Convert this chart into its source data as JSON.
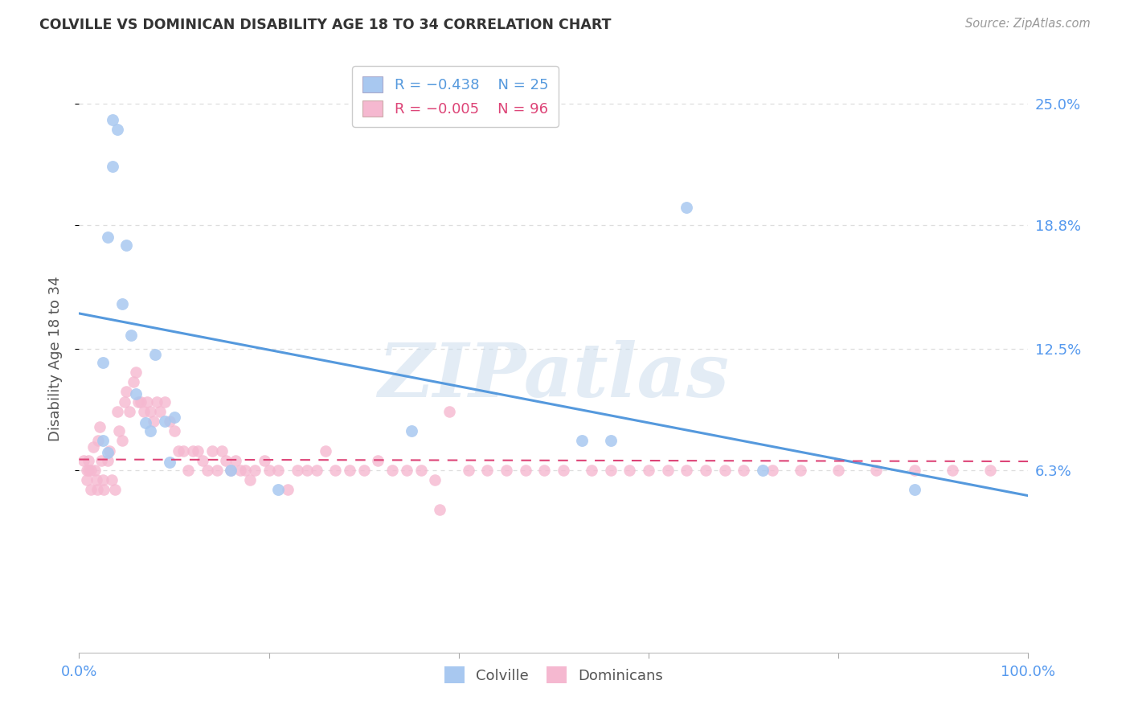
{
  "title": "COLVILLE VS DOMINICAN DISABILITY AGE 18 TO 34 CORRELATION CHART",
  "source": "Source: ZipAtlas.com",
  "ylabel": "Disability Age 18 to 34",
  "xlim": [
    0.0,
    1.0
  ],
  "ylim": [
    -0.03,
    0.27
  ],
  "ytick_vals": [
    0.063,
    0.125,
    0.188,
    0.25
  ],
  "ytick_labels": [
    "6.3%",
    "12.5%",
    "18.8%",
    "25.0%"
  ],
  "xtick_vals": [
    0.0,
    0.2,
    0.4,
    0.6,
    0.8,
    1.0
  ],
  "xtick_labels": [
    "0.0%",
    "",
    "",
    "",
    "",
    "100.0%"
  ],
  "colville_color": "#a8c8f0",
  "dominican_color": "#f5b8d0",
  "regression_blue_color": "#5599dd",
  "regression_pink_color": "#dd4477",
  "legend_r_blue": "R = −0.438",
  "legend_n_blue": "N = 25",
  "legend_r_pink": "R = −0.005",
  "legend_n_pink": "N = 96",
  "colville_x": [
    0.025,
    0.03,
    0.025,
    0.035,
    0.04,
    0.035,
    0.03,
    0.05,
    0.045,
    0.055,
    0.06,
    0.07,
    0.075,
    0.08,
    0.09,
    0.1,
    0.095,
    0.16,
    0.21,
    0.35,
    0.53,
    0.56,
    0.64,
    0.72,
    0.88
  ],
  "colville_y": [
    0.078,
    0.072,
    0.118,
    0.218,
    0.237,
    0.242,
    0.182,
    0.178,
    0.148,
    0.132,
    0.102,
    0.087,
    0.083,
    0.122,
    0.088,
    0.09,
    0.067,
    0.063,
    0.053,
    0.083,
    0.078,
    0.078,
    0.197,
    0.063,
    0.053
  ],
  "dominican_x": [
    0.005,
    0.008,
    0.008,
    0.01,
    0.01,
    0.012,
    0.012,
    0.015,
    0.017,
    0.018,
    0.019,
    0.02,
    0.022,
    0.023,
    0.025,
    0.026,
    0.03,
    0.032,
    0.034,
    0.038,
    0.04,
    0.042,
    0.045,
    0.048,
    0.05,
    0.053,
    0.057,
    0.06,
    0.062,
    0.065,
    0.068,
    0.072,
    0.075,
    0.078,
    0.082,
    0.085,
    0.09,
    0.095,
    0.1,
    0.105,
    0.11,
    0.115,
    0.12,
    0.125,
    0.13,
    0.135,
    0.14,
    0.145,
    0.15,
    0.155,
    0.16,
    0.165,
    0.17,
    0.175,
    0.18,
    0.185,
    0.195,
    0.2,
    0.21,
    0.22,
    0.23,
    0.24,
    0.25,
    0.26,
    0.27,
    0.285,
    0.3,
    0.315,
    0.33,
    0.345,
    0.36,
    0.375,
    0.39,
    0.41,
    0.43,
    0.45,
    0.47,
    0.49,
    0.51,
    0.54,
    0.56,
    0.58,
    0.6,
    0.62,
    0.64,
    0.66,
    0.68,
    0.7,
    0.73,
    0.76,
    0.8,
    0.84,
    0.88,
    0.92,
    0.96,
    0.38
  ],
  "dominican_y": [
    0.068,
    0.063,
    0.058,
    0.063,
    0.068,
    0.063,
    0.053,
    0.075,
    0.063,
    0.058,
    0.053,
    0.078,
    0.085,
    0.068,
    0.058,
    0.053,
    0.068,
    0.073,
    0.058,
    0.053,
    0.093,
    0.083,
    0.078,
    0.098,
    0.103,
    0.093,
    0.108,
    0.113,
    0.098,
    0.098,
    0.093,
    0.098,
    0.093,
    0.088,
    0.098,
    0.093,
    0.098,
    0.088,
    0.083,
    0.073,
    0.073,
    0.063,
    0.073,
    0.073,
    0.068,
    0.063,
    0.073,
    0.063,
    0.073,
    0.068,
    0.063,
    0.068,
    0.063,
    0.063,
    0.058,
    0.063,
    0.068,
    0.063,
    0.063,
    0.053,
    0.063,
    0.063,
    0.063,
    0.073,
    0.063,
    0.063,
    0.063,
    0.068,
    0.063,
    0.063,
    0.063,
    0.058,
    0.093,
    0.063,
    0.063,
    0.063,
    0.063,
    0.063,
    0.063,
    0.063,
    0.063,
    0.063,
    0.063,
    0.063,
    0.063,
    0.063,
    0.063,
    0.063,
    0.063,
    0.063,
    0.063,
    0.063,
    0.063,
    0.063,
    0.063,
    0.043
  ],
  "blue_line": {
    "x0": 0.0,
    "x1": 1.0,
    "y0": 0.143,
    "y1": 0.05
  },
  "pink_line": {
    "x0": 0.0,
    "x1": 1.0,
    "y0": 0.0685,
    "y1": 0.0675
  },
  "watermark_text": "ZIPatlas",
  "background_color": "#ffffff",
  "grid_color": "#dddddd",
  "title_color": "#333333",
  "axis_tick_color": "#5599ee",
  "ylabel_color": "#555555"
}
